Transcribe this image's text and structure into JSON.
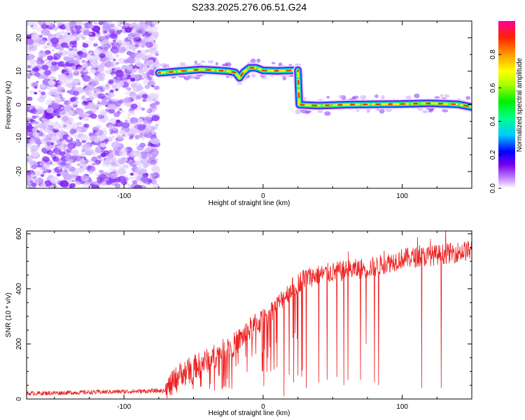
{
  "chart_data": [
    {
      "type": "heatmap",
      "title": "S233.2025.276.06.51.G24",
      "xlabel": "Height of straight line (km)",
      "ylabel": "Frequency (Hz)",
      "xlim": [
        -170,
        150
      ],
      "ylim": [
        -25,
        25
      ],
      "xticks": [
        -100,
        0,
        100
      ],
      "yticks": [
        20,
        10,
        0,
        -10,
        -20
      ],
      "colorbar": {
        "label": "Normalized spectral amplitude",
        "range": [
          0,
          1
        ],
        "ticks": [
          "0.0",
          "0.2",
          "0.4",
          "0.6",
          "0.8"
        ]
      },
      "noise_region_x": [
        -170,
        -76
      ],
      "segments": [
        {
          "x": [
            -75,
            25
          ],
          "freq_hz": 10
        },
        {
          "x": [
            25,
            150
          ],
          "freq_hz": 0
        }
      ],
      "ridge": {
        "x": [
          -75,
          -60,
          -45,
          -35,
          -25,
          -20,
          -17,
          -14,
          -10,
          -5,
          0,
          10,
          20,
          25,
          25,
          40,
          60,
          80,
          100,
          120,
          140,
          150
        ],
        "y": [
          9.5,
          10,
          10.5,
          10.3,
          10,
          9.6,
          8,
          9.7,
          11,
          11,
          10.2,
          10.1,
          10.2,
          10.3,
          0,
          -0.3,
          0,
          0.1,
          0.2,
          0.4,
          0.1,
          -0.7
        ]
      }
    },
    {
      "type": "line",
      "xlabel": "Height of straight line (km)",
      "ylabel": "SNR (10 * v/v)",
      "xlim": [
        -170,
        150
      ],
      "ylim": [
        0,
        610
      ],
      "xticks": [
        -100,
        0,
        100
      ],
      "yticks": [
        0,
        200,
        400,
        600
      ],
      "color": "#ee2020",
      "trend": {
        "x": [
          -170,
          -70,
          -60,
          -40,
          -20,
          -10,
          0,
          10,
          20,
          30,
          50,
          80,
          100,
          120,
          150
        ],
        "y": [
          20,
          30,
          90,
          140,
          200,
          250,
          290,
          340,
          400,
          440,
          460,
          480,
          510,
          520,
          540
        ]
      },
      "dips": [
        {
          "x": 15,
          "y": 10
        },
        {
          "x": 22,
          "y": 60
        },
        {
          "x": 31,
          "y": 40
        },
        {
          "x": 40,
          "y": 60
        },
        {
          "x": 46,
          "y": 70
        },
        {
          "x": 53,
          "y": 80
        },
        {
          "x": 58,
          "y": 50
        },
        {
          "x": 61,
          "y": 70
        },
        {
          "x": 70,
          "y": 70
        },
        {
          "x": 74,
          "y": 200
        },
        {
          "x": 80,
          "y": 60
        },
        {
          "x": 83,
          "y": 50
        },
        {
          "x": 114,
          "y": 40
        },
        {
          "x": 128,
          "y": 40
        }
      ]
    }
  ]
}
